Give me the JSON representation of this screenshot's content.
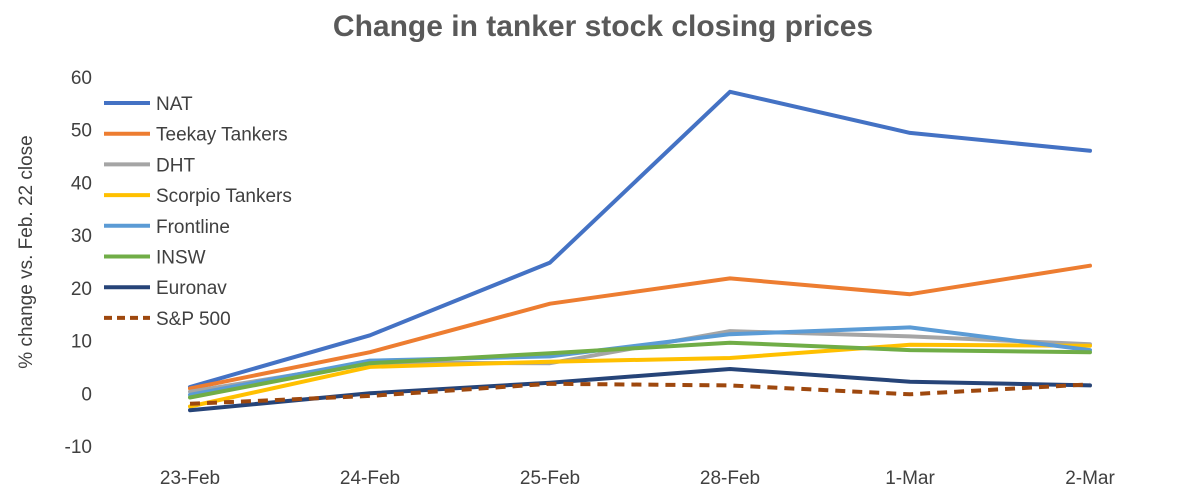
{
  "chart_data": {
    "type": "line",
    "title": "Change in tanker stock closing prices",
    "xlabel": "",
    "ylabel": "% change vs. Feb. 22 close",
    "ylim": [
      -10,
      60
    ],
    "yticks": [
      -10,
      0,
      10,
      20,
      30,
      40,
      50,
      60
    ],
    "categories": [
      "23-Feb",
      "24-Feb",
      "25-Feb",
      "28-Feb",
      "1-Mar",
      "2-Mar"
    ],
    "grid": false,
    "legend_position": "top-left",
    "series": [
      {
        "name": "NAT",
        "color": "#4472C4",
        "dash": "solid",
        "values": [
          1.2,
          11,
          24.8,
          57.2,
          49.4,
          46
        ]
      },
      {
        "name": "Teekay Tankers",
        "color": "#ED7D31",
        "dash": "solid",
        "values": [
          0.9,
          7.8,
          17,
          21.8,
          18.8,
          24.2
        ]
      },
      {
        "name": "DHT",
        "color": "#A5A5A5",
        "dash": "solid",
        "values": [
          0.3,
          5.8,
          5.7,
          11.8,
          10.8,
          9.3
        ]
      },
      {
        "name": "Scorpio Tankers",
        "color": "#FFC000",
        "dash": "solid",
        "values": [
          -2.5,
          5,
          6,
          6.7,
          9.2,
          9
        ]
      },
      {
        "name": "Frontline",
        "color": "#5B9BD5",
        "dash": "solid",
        "values": [
          -0.3,
          6.2,
          7,
          11.2,
          12.5,
          8.2
        ]
      },
      {
        "name": "INSW",
        "color": "#70AD47",
        "dash": "solid",
        "values": [
          -0.8,
          5.7,
          7.6,
          9.6,
          8.2,
          7.8
        ]
      },
      {
        "name": "Euronav",
        "color": "#264478",
        "dash": "solid",
        "values": [
          -3.2,
          0,
          2,
          4.6,
          2.2,
          1.5
        ]
      },
      {
        "name": "S&P 500",
        "color": "#9E480E",
        "dash": "dashed",
        "values": [
          -2,
          -0.5,
          1.8,
          1.5,
          -0.2,
          1.7
        ]
      }
    ]
  }
}
